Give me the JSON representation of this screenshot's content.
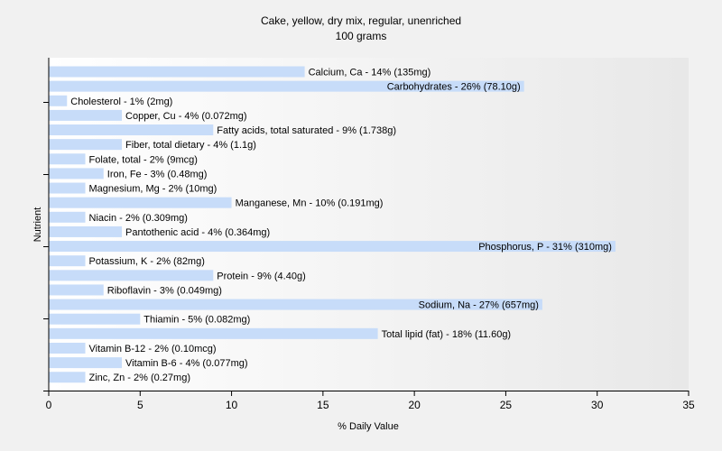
{
  "chart_data": {
    "type": "bar",
    "orientation": "horizontal",
    "title": "Cake, yellow, dry mix, regular, unenriched",
    "subtitle": "100 grams",
    "xlabel": "% Daily Value",
    "ylabel": "Nutrient",
    "xlim": [
      0,
      35
    ],
    "xticks": [
      0,
      5,
      10,
      15,
      20,
      25,
      30,
      35
    ],
    "grid": false,
    "bar_color": "#c7dcf9",
    "categories": [
      "Calcium, Ca",
      "Carbohydrates",
      "Cholesterol",
      "Copper, Cu",
      "Fatty acids, total saturated",
      "Fiber, total dietary",
      "Folate, total",
      "Iron, Fe",
      "Magnesium, Mg",
      "Manganese, Mn",
      "Niacin",
      "Pantothenic acid",
      "Phosphorus, P",
      "Potassium, K",
      "Protein",
      "Riboflavin",
      "Sodium, Na",
      "Thiamin",
      "Total lipid (fat)",
      "Vitamin B-12",
      "Vitamin B-6",
      "Zinc, Zn"
    ],
    "values": [
      14,
      26,
      1,
      4,
      9,
      4,
      2,
      3,
      2,
      10,
      2,
      4,
      31,
      2,
      9,
      3,
      27,
      5,
      18,
      2,
      4,
      2
    ],
    "labels": [
      "Calcium, Ca - 14% (135mg)",
      "Carbohydrates - 26% (78.10g)",
      "Cholesterol - 1% (2mg)",
      "Copper, Cu - 4% (0.072mg)",
      "Fatty acids, total saturated - 9% (1.738g)",
      "Fiber, total dietary - 4% (1.1g)",
      "Folate, total - 2% (9mcg)",
      "Iron, Fe - 3% (0.48mg)",
      "Magnesium, Mg - 2% (10mg)",
      "Manganese, Mn - 10% (0.191mg)",
      "Niacin - 2% (0.309mg)",
      "Pantothenic acid - 4% (0.364mg)",
      "Phosphorus, P - 31% (310mg)",
      "Potassium, K - 2% (82mg)",
      "Protein - 9% (4.40g)",
      "Riboflavin - 3% (0.049mg)",
      "Sodium, Na - 27% (657mg)",
      "Thiamin - 5% (0.082mg)",
      "Total lipid (fat) - 18% (11.60g)",
      "Vitamin B-12 - 2% (0.10mcg)",
      "Vitamin B-6 - 4% (0.077mg)",
      "Zinc, Zn - 2% (0.27mg)"
    ]
  }
}
